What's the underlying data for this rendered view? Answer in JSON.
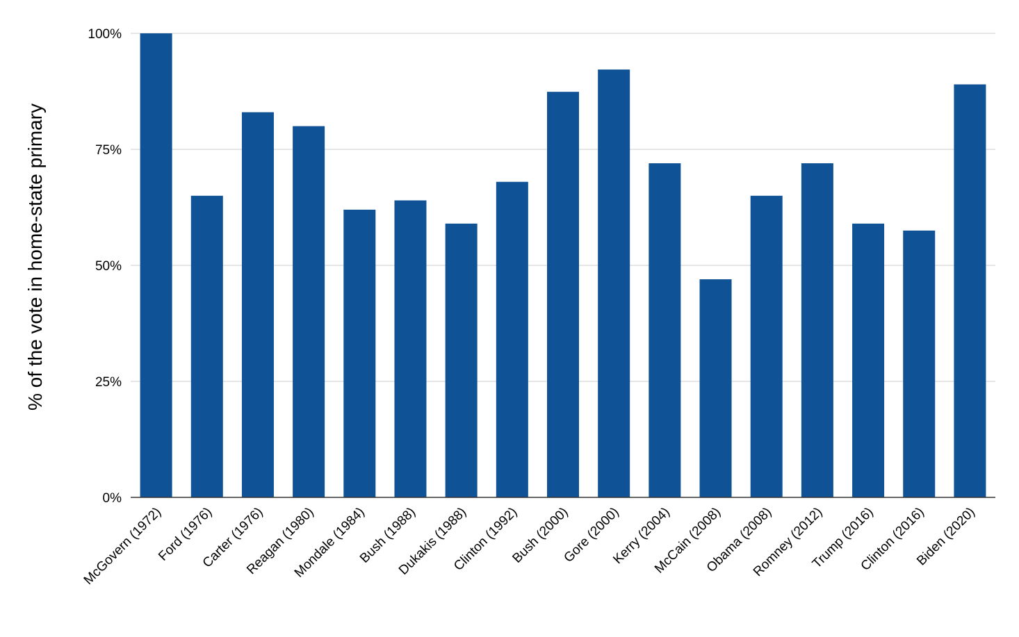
{
  "chart_data": {
    "type": "bar",
    "title": "",
    "xlabel": "",
    "ylabel": "% of the vote in home-state primary",
    "ylim": [
      0,
      100
    ],
    "yticks": [
      {
        "value": 0,
        "label": "0%"
      },
      {
        "value": 25,
        "label": "25%"
      },
      {
        "value": 50,
        "label": "50%"
      },
      {
        "value": 75,
        "label": "75%"
      },
      {
        "value": 100,
        "label": "100%"
      }
    ],
    "categories": [
      "McGovern (1972)",
      "Ford (1976)",
      "Carter (1976)",
      "Reagan (1980)",
      "Mondale (1984)",
      "Bush (1988)",
      "Dukakis (1988)",
      "Clinton (1992)",
      "Bush (2000)",
      "Gore (2000)",
      "Kerry (2004)",
      "McCain (2008)",
      "Obama (2008)",
      "Romney (2012)",
      "Trump (2016)",
      "Clinton (2016)",
      "Biden (2020)"
    ],
    "values": [
      100,
      65,
      83,
      80,
      62,
      64,
      59,
      68,
      87.4,
      92.2,
      72,
      47,
      65,
      72,
      59,
      57.5,
      89
    ],
    "bar_color": "#0f5295",
    "grid": true,
    "legend": "none"
  }
}
